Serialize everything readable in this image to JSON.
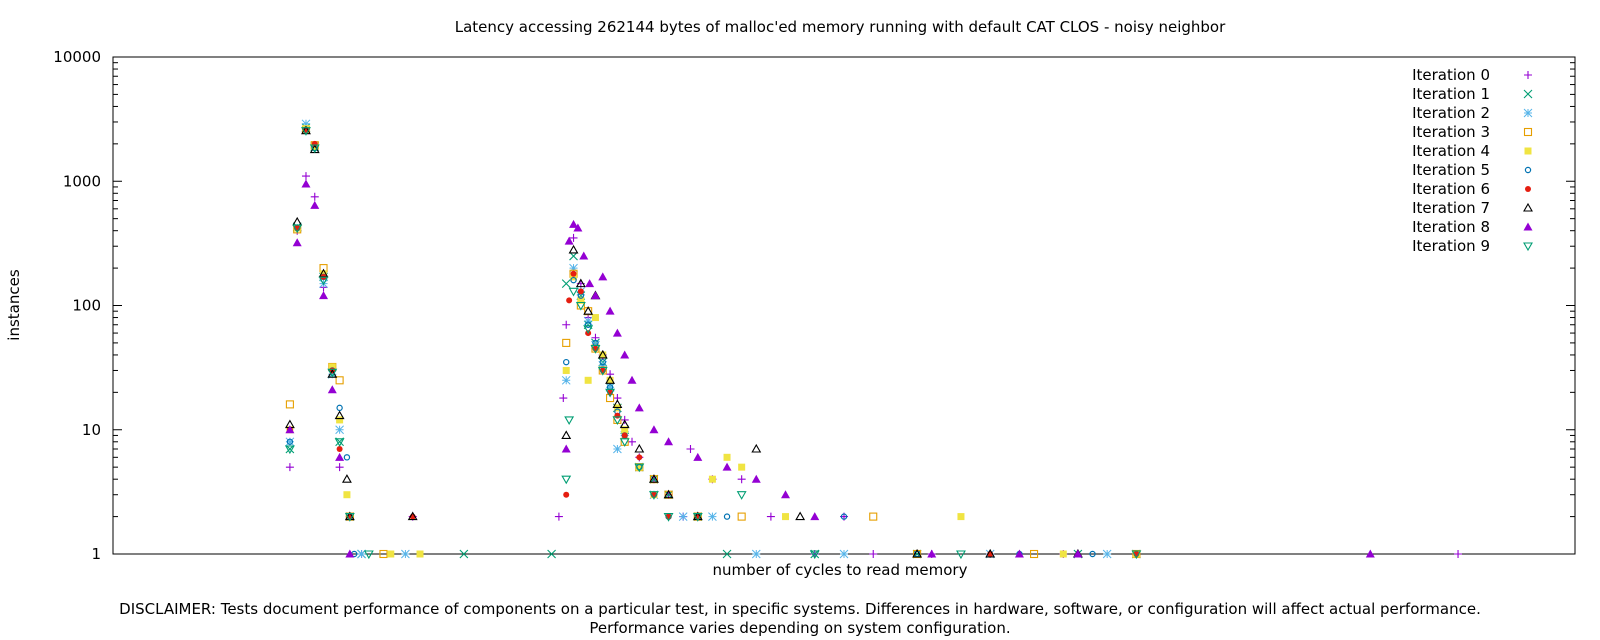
{
  "chart_data": {
    "type": "scatter",
    "title": "Latency accessing 262144 bytes of malloc'ed memory running with default CAT CLOS - noisy neighbor",
    "xlabel": "number of cycles to read memory",
    "ylabel": "instances",
    "y_scale": "log",
    "ylim": [
      1,
      10000
    ],
    "y_ticks": [
      1,
      10,
      100,
      1000,
      10000
    ],
    "y_tick_labels": [
      "1",
      "10",
      "100",
      "1000",
      "10000"
    ],
    "x_tick_labels": [],
    "grid": false,
    "legend_position": "top-right",
    "series": [
      {
        "name": "Iteration 0",
        "marker": "plus",
        "color": "#9400d3",
        "points": [
          [
            0.121,
            5
          ],
          [
            0.126,
            400
          ],
          [
            0.132,
            1100
          ],
          [
            0.138,
            750
          ],
          [
            0.144,
            140
          ],
          [
            0.15,
            30
          ],
          [
            0.155,
            5
          ],
          [
            0.162,
            2
          ],
          [
            0.17,
            1
          ],
          [
            0.205,
            2
          ],
          [
            0.305,
            2
          ],
          [
            0.308,
            18
          ],
          [
            0.31,
            70
          ],
          [
            0.315,
            350
          ],
          [
            0.32,
            150
          ],
          [
            0.325,
            80
          ],
          [
            0.33,
            55
          ],
          [
            0.335,
            40
          ],
          [
            0.34,
            28
          ],
          [
            0.345,
            18
          ],
          [
            0.35,
            12
          ],
          [
            0.355,
            8
          ],
          [
            0.36,
            6
          ],
          [
            0.37,
            4
          ],
          [
            0.38,
            3
          ],
          [
            0.39,
            2
          ],
          [
            0.395,
            7
          ],
          [
            0.41,
            4
          ],
          [
            0.43,
            4
          ],
          [
            0.45,
            2
          ],
          [
            0.48,
            1
          ],
          [
            0.5,
            2
          ],
          [
            0.52,
            1
          ],
          [
            0.56,
            1
          ],
          [
            0.6,
            1
          ],
          [
            0.65,
            1
          ],
          [
            0.7,
            1
          ],
          [
            0.92,
            1
          ]
        ]
      },
      {
        "name": "Iteration 1",
        "marker": "cross",
        "color": "#009e73",
        "points": [
          [
            0.121,
            7
          ],
          [
            0.126,
            430
          ],
          [
            0.132,
            2700
          ],
          [
            0.138,
            1900
          ],
          [
            0.144,
            170
          ],
          [
            0.15,
            28
          ],
          [
            0.155,
            8
          ],
          [
            0.162,
            2
          ],
          [
            0.17,
            1
          ],
          [
            0.24,
            1
          ],
          [
            0.3,
            1
          ],
          [
            0.31,
            150
          ],
          [
            0.315,
            250
          ],
          [
            0.32,
            120
          ],
          [
            0.325,
            70
          ],
          [
            0.33,
            50
          ],
          [
            0.335,
            35
          ],
          [
            0.34,
            22
          ],
          [
            0.345,
            15
          ],
          [
            0.35,
            10
          ],
          [
            0.36,
            5
          ],
          [
            0.37,
            4
          ],
          [
            0.38,
            3
          ],
          [
            0.4,
            2
          ],
          [
            0.42,
            1
          ],
          [
            0.48,
            1
          ],
          [
            0.55,
            1
          ],
          [
            0.66,
            1
          ],
          [
            0.7,
            1
          ]
        ]
      },
      {
        "name": "Iteration 2",
        "marker": "star",
        "color": "#56b4e9",
        "points": [
          [
            0.121,
            8
          ],
          [
            0.126,
            420
          ],
          [
            0.132,
            2900
          ],
          [
            0.138,
            1850
          ],
          [
            0.144,
            150
          ],
          [
            0.15,
            28
          ],
          [
            0.155,
            10
          ],
          [
            0.162,
            2
          ],
          [
            0.17,
            1
          ],
          [
            0.2,
            1
          ],
          [
            0.31,
            25
          ],
          [
            0.315,
            200
          ],
          [
            0.32,
            130
          ],
          [
            0.325,
            75
          ],
          [
            0.33,
            48
          ],
          [
            0.335,
            33
          ],
          [
            0.34,
            22
          ],
          [
            0.345,
            7
          ],
          [
            0.35,
            9
          ],
          [
            0.36,
            5
          ],
          [
            0.37,
            3
          ],
          [
            0.39,
            2
          ],
          [
            0.41,
            2
          ],
          [
            0.44,
            1
          ],
          [
            0.5,
            1
          ],
          [
            0.6,
            1
          ],
          [
            0.68,
            1
          ]
        ]
      },
      {
        "name": "Iteration 3",
        "marker": "square",
        "color": "#e69f00",
        "points": [
          [
            0.121,
            16
          ],
          [
            0.126,
            410
          ],
          [
            0.132,
            2600
          ],
          [
            0.138,
            1950
          ],
          [
            0.144,
            200
          ],
          [
            0.15,
            32
          ],
          [
            0.155,
            25
          ],
          [
            0.162,
            2
          ],
          [
            0.185,
            1
          ],
          [
            0.31,
            50
          ],
          [
            0.315,
            180
          ],
          [
            0.32,
            100
          ],
          [
            0.325,
            90
          ],
          [
            0.33,
            45
          ],
          [
            0.335,
            30
          ],
          [
            0.34,
            18
          ],
          [
            0.345,
            12
          ],
          [
            0.35,
            8
          ],
          [
            0.36,
            5
          ],
          [
            0.37,
            4
          ],
          [
            0.38,
            3
          ],
          [
            0.4,
            2
          ],
          [
            0.43,
            2
          ],
          [
            0.52,
            2
          ],
          [
            0.55,
            1
          ],
          [
            0.63,
            1
          ],
          [
            0.7,
            1
          ]
        ]
      },
      {
        "name": "Iteration 4",
        "marker": "filled-square",
        "color": "#f0e442",
        "points": [
          [
            0.121,
            10
          ],
          [
            0.126,
            420
          ],
          [
            0.132,
            2650
          ],
          [
            0.138,
            1900
          ],
          [
            0.144,
            180
          ],
          [
            0.15,
            32
          ],
          [
            0.155,
            12
          ],
          [
            0.16,
            3
          ],
          [
            0.19,
            1
          ],
          [
            0.21,
            1
          ],
          [
            0.31,
            30
          ],
          [
            0.315,
            170
          ],
          [
            0.32,
            110
          ],
          [
            0.325,
            25
          ],
          [
            0.33,
            80
          ],
          [
            0.335,
            40
          ],
          [
            0.34,
            25
          ],
          [
            0.345,
            15
          ],
          [
            0.35,
            10
          ],
          [
            0.36,
            5
          ],
          [
            0.37,
            3
          ],
          [
            0.41,
            4
          ],
          [
            0.42,
            6
          ],
          [
            0.43,
            5
          ],
          [
            0.46,
            2
          ],
          [
            0.58,
            2
          ],
          [
            0.65,
            1
          ],
          [
            0.7,
            1
          ]
        ]
      },
      {
        "name": "Iteration 5",
        "marker": "circle",
        "color": "#0072b2",
        "points": [
          [
            0.121,
            8
          ],
          [
            0.126,
            420
          ],
          [
            0.132,
            2600
          ],
          [
            0.138,
            1850
          ],
          [
            0.144,
            170
          ],
          [
            0.15,
            30
          ],
          [
            0.155,
            15
          ],
          [
            0.16,
            6
          ],
          [
            0.165,
            1
          ],
          [
            0.31,
            35
          ],
          [
            0.315,
            160
          ],
          [
            0.32,
            120
          ],
          [
            0.325,
            70
          ],
          [
            0.33,
            50
          ],
          [
            0.335,
            35
          ],
          [
            0.34,
            22
          ],
          [
            0.345,
            14
          ],
          [
            0.35,
            9
          ],
          [
            0.36,
            5
          ],
          [
            0.37,
            3
          ],
          [
            0.38,
            2
          ],
          [
            0.42,
            2
          ],
          [
            0.5,
            2
          ],
          [
            0.55,
            1
          ],
          [
            0.62,
            1
          ],
          [
            0.67,
            1
          ]
        ]
      },
      {
        "name": "Iteration 6",
        "marker": "filled-circle",
        "color": "#e51e10",
        "points": [
          [
            0.121,
            10
          ],
          [
            0.126,
            420
          ],
          [
            0.132,
            2600
          ],
          [
            0.138,
            2000
          ],
          [
            0.144,
            170
          ],
          [
            0.15,
            30
          ],
          [
            0.155,
            7
          ],
          [
            0.162,
            2
          ],
          [
            0.205,
            2
          ],
          [
            0.31,
            3
          ],
          [
            0.312,
            110
          ],
          [
            0.315,
            180
          ],
          [
            0.32,
            130
          ],
          [
            0.325,
            60
          ],
          [
            0.33,
            45
          ],
          [
            0.335,
            30
          ],
          [
            0.34,
            20
          ],
          [
            0.345,
            13
          ],
          [
            0.35,
            9
          ],
          [
            0.36,
            6
          ],
          [
            0.37,
            3
          ],
          [
            0.38,
            2
          ],
          [
            0.4,
            2
          ],
          [
            0.6,
            1
          ],
          [
            0.7,
            1
          ]
        ]
      },
      {
        "name": "Iteration 7",
        "marker": "triangle",
        "color": "#000000",
        "points": [
          [
            0.121,
            11
          ],
          [
            0.126,
            470
          ],
          [
            0.132,
            2550
          ],
          [
            0.138,
            1800
          ],
          [
            0.144,
            180
          ],
          [
            0.15,
            28
          ],
          [
            0.155,
            13
          ],
          [
            0.16,
            4
          ],
          [
            0.162,
            2
          ],
          [
            0.205,
            2
          ],
          [
            0.31,
            9
          ],
          [
            0.315,
            280
          ],
          [
            0.32,
            150
          ],
          [
            0.325,
            90
          ],
          [
            0.33,
            120
          ],
          [
            0.335,
            40
          ],
          [
            0.34,
            25
          ],
          [
            0.345,
            16
          ],
          [
            0.35,
            11
          ],
          [
            0.36,
            7
          ],
          [
            0.37,
            4
          ],
          [
            0.38,
            3
          ],
          [
            0.4,
            2
          ],
          [
            0.44,
            7
          ],
          [
            0.47,
            2
          ],
          [
            0.55,
            1
          ],
          [
            0.6,
            1
          ],
          [
            0.66,
            1
          ]
        ]
      },
      {
        "name": "Iteration 8",
        "marker": "filled-triangle",
        "color": "#9400d3",
        "points": [
          [
            0.121,
            10
          ],
          [
            0.126,
            320
          ],
          [
            0.132,
            950
          ],
          [
            0.138,
            640
          ],
          [
            0.144,
            120
          ],
          [
            0.15,
            21
          ],
          [
            0.155,
            6
          ],
          [
            0.162,
            1
          ],
          [
            0.31,
            7
          ],
          [
            0.312,
            330
          ],
          [
            0.315,
            450
          ],
          [
            0.318,
            420
          ],
          [
            0.322,
            250
          ],
          [
            0.326,
            150
          ],
          [
            0.33,
            120
          ],
          [
            0.335,
            170
          ],
          [
            0.34,
            90
          ],
          [
            0.345,
            60
          ],
          [
            0.35,
            40
          ],
          [
            0.355,
            25
          ],
          [
            0.36,
            15
          ],
          [
            0.37,
            10
          ],
          [
            0.38,
            8
          ],
          [
            0.4,
            6
          ],
          [
            0.42,
            5
          ],
          [
            0.44,
            4
          ],
          [
            0.46,
            3
          ],
          [
            0.48,
            2
          ],
          [
            0.56,
            1
          ],
          [
            0.62,
            1
          ],
          [
            0.66,
            1
          ],
          [
            0.86,
            1
          ]
        ]
      },
      {
        "name": "Iteration 9",
        "marker": "down-triangle",
        "color": "#009e73",
        "points": [
          [
            0.121,
            7
          ],
          [
            0.126,
            420
          ],
          [
            0.132,
            2550
          ],
          [
            0.138,
            1850
          ],
          [
            0.144,
            160
          ],
          [
            0.15,
            29
          ],
          [
            0.155,
            8
          ],
          [
            0.162,
            2
          ],
          [
            0.175,
            1
          ],
          [
            0.31,
            4
          ],
          [
            0.312,
            12
          ],
          [
            0.315,
            130
          ],
          [
            0.32,
            100
          ],
          [
            0.325,
            65
          ],
          [
            0.33,
            45
          ],
          [
            0.335,
            30
          ],
          [
            0.34,
            20
          ],
          [
            0.345,
            12
          ],
          [
            0.35,
            8
          ],
          [
            0.36,
            5
          ],
          [
            0.37,
            3
          ],
          [
            0.38,
            2
          ],
          [
            0.4,
            2
          ],
          [
            0.43,
            3
          ],
          [
            0.48,
            1
          ],
          [
            0.58,
            1
          ],
          [
            0.7,
            1
          ]
        ]
      }
    ]
  },
  "disclaimer": {
    "line1": "DISCLAIMER: Tests document performance of components on a particular test, in specific systems.  Differences in hardware, software, or configuration will affect actual performance.",
    "line2": "Performance varies depending on system configuration."
  }
}
